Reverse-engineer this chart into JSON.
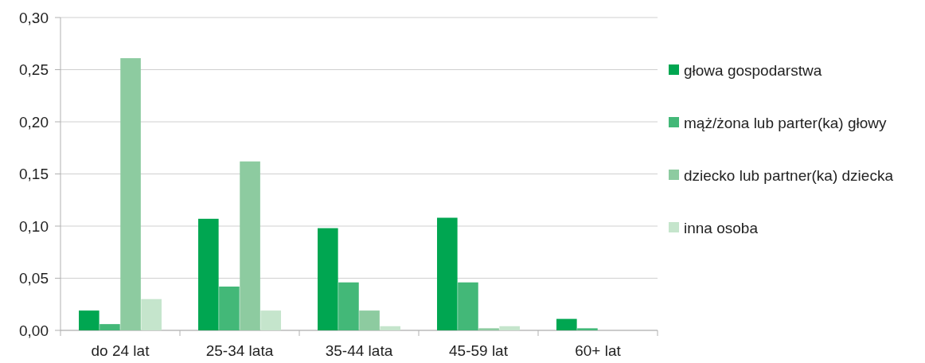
{
  "chart_data": {
    "type": "bar",
    "categories": [
      "do 24 lat",
      "25-34 lata",
      "35-44 lata",
      "45-59 lat",
      "60+ lat"
    ],
    "series": [
      {
        "name": "głowa gospodarstwa",
        "color": "#00a651",
        "values": [
          0.019,
          0.107,
          0.098,
          0.108,
          0.011
        ]
      },
      {
        "name": "mąż/żona lub parter(ka) głowy",
        "color": "#43b878",
        "values": [
          0.006,
          0.042,
          0.046,
          0.046,
          0.002
        ]
      },
      {
        "name": "dziecko lub partner(ka) dziecka",
        "color": "#8dcba0",
        "values": [
          0.261,
          0.162,
          0.019,
          0.002,
          0
        ]
      },
      {
        "name": "inna osoba",
        "color": "#c5e5cc",
        "values": [
          0.03,
          0.019,
          0.004,
          0.004,
          0
        ]
      }
    ],
    "ylim": [
      0,
      0.3
    ],
    "yticks": [
      {
        "value": 0,
        "label": "0,00"
      },
      {
        "value": 0.05,
        "label": "0,05"
      },
      {
        "value": 0.1,
        "label": "0,10"
      },
      {
        "value": 0.15,
        "label": "0,15"
      },
      {
        "value": 0.2,
        "label": "0,20"
      },
      {
        "value": 0.25,
        "label": "0,25"
      },
      {
        "value": 0.3,
        "label": "0,30"
      }
    ],
    "grid": "y",
    "legend": "right"
  }
}
